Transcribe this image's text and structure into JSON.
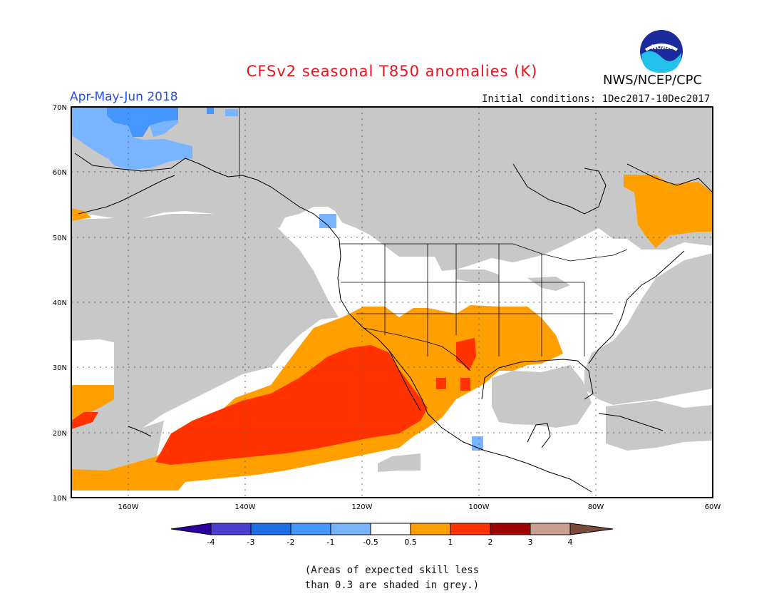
{
  "header": {
    "title": "CFSv2 seasonal T850 anomalies (K)",
    "season": "Apr-May-Jun 2018",
    "initial_conditions": "Initial conditions: 1Dec2017-10Dec2017",
    "agency": "NWS/NCEP/CPC",
    "logo_text": "NOAA"
  },
  "map": {
    "lon_range": [
      -172,
      -60
    ],
    "lat_range": [
      10,
      70
    ],
    "lon_ticks": [
      {
        "value": -160,
        "label": "160W"
      },
      {
        "value": -140,
        "label": "140W"
      },
      {
        "value": -120,
        "label": "120W"
      },
      {
        "value": -100,
        "label": "100W"
      },
      {
        "value": -80,
        "label": "80W"
      },
      {
        "value": -60,
        "label": "60W"
      }
    ],
    "lat_ticks": [
      {
        "value": 70,
        "label": "70N"
      },
      {
        "value": 60,
        "label": "60N"
      },
      {
        "value": 50,
        "label": "50N"
      },
      {
        "value": 40,
        "label": "40N"
      },
      {
        "value": 30,
        "label": "30N"
      },
      {
        "value": 20,
        "label": "20N"
      },
      {
        "value": 10,
        "label": "10N"
      }
    ],
    "grid": true,
    "colors": {
      "skill_grey": "#c8c8c8",
      "anom_0p5_1": "#ff9f00",
      "anom_1_2": "#ff3200",
      "anom_m1_m0p5": "#78b4ff",
      "anom_m2_m1": "#4696ff",
      "coast": "#000000"
    }
  },
  "colorbar": {
    "labels": [
      "-4",
      "-3",
      "-2",
      "-1",
      "-0.5",
      "0.5",
      "1",
      "2",
      "3",
      "4"
    ],
    "colors": [
      "#2a00a0",
      "#4a3fd0",
      "#1e6fe6",
      "#4696ff",
      "#78b4ff",
      "#ffffff",
      "#ff9f00",
      "#ff3200",
      "#a00000",
      "#c8a090",
      "#7a4a3a"
    ]
  },
  "footnote": {
    "line1": "(Areas of expected skill less",
    "line2": "than 0.3 are shaded in grey.)"
  }
}
